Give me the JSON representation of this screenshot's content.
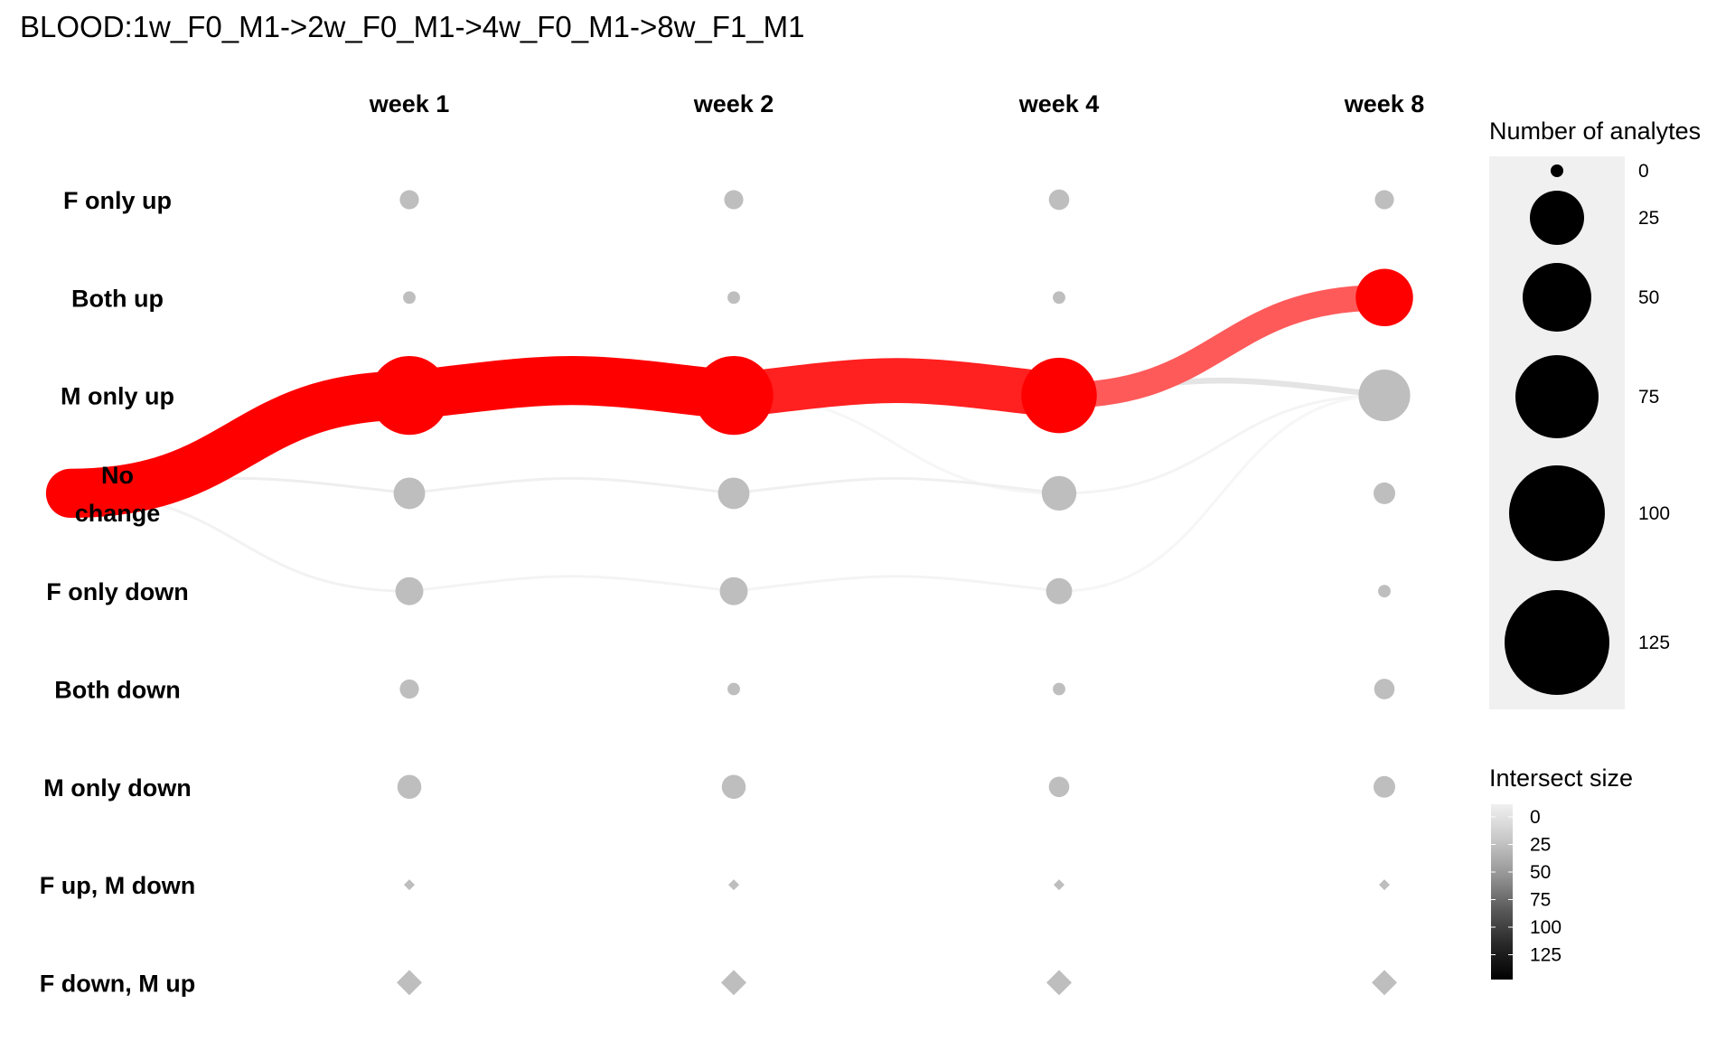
{
  "chart_data": {
    "type": "scatter",
    "title": "BLOOD:1w_F0_M1->2w_F0_M1->4w_F0_M1->8w_F1_M1",
    "columns": [
      "week 1",
      "week 2",
      "week 4",
      "week 8"
    ],
    "rows": [
      "F only up",
      "Both up",
      "M only up",
      "No change",
      "F only down",
      "Both down",
      "M only down",
      "F up, M down",
      "F down, M up"
    ],
    "row_label_lines": [
      [
        "F only up"
      ],
      [
        "Both up"
      ],
      [
        "M only up"
      ],
      [
        "No",
        "change"
      ],
      [
        "F only down"
      ],
      [
        "Both down"
      ],
      [
        "M only down"
      ],
      [
        "F up, M down"
      ],
      [
        "F down, M up"
      ]
    ],
    "node_counts": [
      [
        6,
        6,
        7,
        6
      ],
      [
        2,
        2,
        2,
        62
      ],
      [
        118,
        118,
        108,
        50
      ],
      [
        18,
        18,
        22,
        8
      ],
      [
        14,
        14,
        12,
        2
      ],
      [
        6,
        2,
        2,
        7
      ],
      [
        10,
        10,
        7,
        8
      ],
      [
        0,
        0,
        0,
        0
      ],
      [
        0,
        0,
        0,
        0
      ]
    ],
    "highlight_path": {
      "start": "No change",
      "rows": [
        "M only up",
        "M only up",
        "M only up",
        "Both up"
      ],
      "color": "#ff0000",
      "highlighted_nodes": [
        [
          2,
          0
        ],
        [
          2,
          1
        ],
        [
          2,
          2
        ],
        [
          1,
          3
        ]
      ]
    },
    "flows": [
      {
        "from_col": -1,
        "from_row": "No change",
        "to_col": 0,
        "to_row": "M only up",
        "value": 118,
        "color": "#ff0000"
      },
      {
        "from_col": 0,
        "from_row": "M only up",
        "to_col": 1,
        "to_row": "M only up",
        "value": 118,
        "color": "#ff0000"
      },
      {
        "from_col": 1,
        "from_row": "M only up",
        "to_col": 2,
        "to_row": "M only up",
        "value": 108,
        "color": "#ff2020"
      },
      {
        "from_col": 2,
        "from_row": "M only up",
        "to_col": 3,
        "to_row": "Both up",
        "value": 62,
        "color": "#ff5a5a"
      },
      {
        "from_col": 2,
        "from_row": "M only up",
        "to_col": 3,
        "to_row": "M only up",
        "value": 14,
        "color": "#e4e4e4"
      },
      {
        "from_col": -1,
        "from_row": "No change",
        "to_col": 0,
        "to_row": "No change",
        "value": 3,
        "color": "#eeeeee"
      },
      {
        "from_col": -1,
        "from_row": "No change",
        "to_col": 0,
        "to_row": "F only down",
        "value": 2,
        "color": "#f2f2f2"
      },
      {
        "from_col": 0,
        "from_row": "No change",
        "to_col": 1,
        "to_row": "No change",
        "value": 3,
        "color": "#f0f0f0"
      },
      {
        "from_col": 1,
        "from_row": "No change",
        "to_col": 2,
        "to_row": "No change",
        "value": 3,
        "color": "#f0f0f0"
      },
      {
        "from_col": 0,
        "from_row": "F only down",
        "to_col": 1,
        "to_row": "F only down",
        "value": 2,
        "color": "#f4f4f4"
      },
      {
        "from_col": 1,
        "from_row": "F only down",
        "to_col": 2,
        "to_row": "F only down",
        "value": 2,
        "color": "#f4f4f4"
      },
      {
        "from_col": 1,
        "from_row": "M only up",
        "to_col": 2,
        "to_row": "No change",
        "value": 2,
        "color": "#f6f6f6"
      },
      {
        "from_col": 2,
        "from_row": "No change",
        "to_col": 3,
        "to_row": "M only up",
        "value": 2,
        "color": "#f4f4f4"
      },
      {
        "from_col": 2,
        "from_row": "F only down",
        "to_col": 3,
        "to_row": "M only up",
        "value": 2,
        "color": "#f6f6f6"
      }
    ],
    "legend_size": {
      "title": "Number of analytes",
      "breaks": [
        0,
        25,
        50,
        75,
        100,
        125
      ]
    },
    "legend_color": {
      "title": "Intersect size",
      "breaks": [
        0,
        25,
        50,
        75,
        100,
        125
      ]
    },
    "colors": {
      "highlight": "#ff0000",
      "node": "#bebebe",
      "legend_key_bg": "#f0f0f0"
    }
  }
}
